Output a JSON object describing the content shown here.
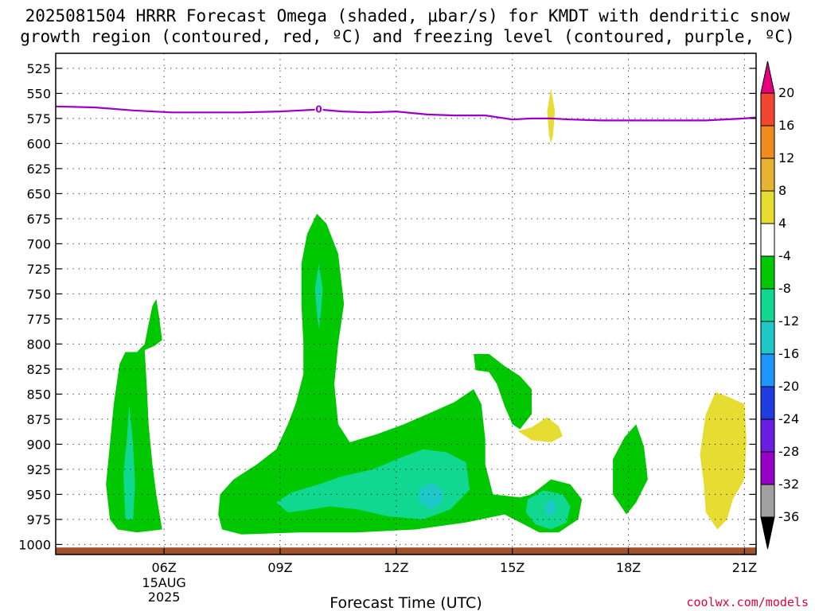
{
  "title_line1": "2025081504 HRRR Forecast Omega (shaded, μbar/s) for KMDT with dendritic snow",
  "title_line2": "growth region (contoured, red, ºC) and freezing level (contoured, purple, ºC)",
  "credit": "coolwx.com/models",
  "chart_data": {
    "type": "heatmap",
    "title": "2025081504 HRRR Forecast Omega (shaded, μbar/s) for KMDT with dendritic snow growth region (contoured, red, ºC) and freezing level (contoured, purple, ºC)",
    "xlabel": "Forecast Time (UTC)",
    "ylabel": "",
    "x_range_hours_utc": [
      3.2,
      21.3
    ],
    "ylim": [
      1010,
      510
    ],
    "y_ticks": [
      525,
      550,
      575,
      600,
      625,
      650,
      675,
      700,
      725,
      750,
      775,
      800,
      825,
      850,
      875,
      900,
      925,
      950,
      975,
      1000
    ],
    "x_ticks": [
      {
        "hour": 6,
        "label": "06Z"
      },
      {
        "hour": 9,
        "label": "09Z"
      },
      {
        "hour": 12,
        "label": "12Z"
      },
      {
        "hour": 15,
        "label": "15Z"
      },
      {
        "hour": 18,
        "label": "18Z"
      },
      {
        "hour": 21,
        "label": "21Z"
      }
    ],
    "date_label": [
      "15AUG",
      "2025"
    ],
    "grid": true,
    "colorbar": {
      "levels": [
        -36,
        -32,
        -28,
        -24,
        -20,
        -16,
        -12,
        -8,
        -4,
        4,
        8,
        12,
        16,
        20
      ],
      "colors": [
        "#000000",
        "#a0a0a0",
        "#9600c8",
        "#6a1ee0",
        "#1e3ce0",
        "#1e96ff",
        "#1ec8c8",
        "#10d890",
        "#00c800",
        "#ffffff",
        "#e6dc32",
        "#e6b432",
        "#f08c1e",
        "#f04632",
        "#e6007d"
      ]
    },
    "freezing_level": {
      "label": "0",
      "color": "#9a00c8",
      "hours": [
        3.2,
        4.2,
        5.2,
        6.2,
        7.2,
        8.0,
        9.0,
        10.0,
        10.6,
        11.3,
        12.0,
        12.8,
        13.5,
        14.3,
        15.0,
        15.5,
        16.0,
        16.5,
        17.3,
        18.2,
        19.0,
        20.0,
        21.0,
        21.3
      ],
      "pressure": [
        563,
        564,
        567,
        569,
        569,
        569,
        568,
        566,
        568,
        569,
        568,
        571,
        572,
        572,
        576,
        575,
        575,
        576,
        577,
        577,
        577,
        577,
        575,
        574
      ]
    },
    "omega_regions": [
      {
        "value": -6,
        "label": "-8 to -4",
        "points": [
          [
            4.6,
            975
          ],
          [
            4.5,
            940
          ],
          [
            4.6,
            900
          ],
          [
            4.7,
            860
          ],
          [
            4.85,
            820
          ],
          [
            5.0,
            808
          ],
          [
            5.3,
            808
          ],
          [
            5.5,
            800
          ],
          [
            5.6,
            780
          ],
          [
            5.7,
            762
          ],
          [
            5.8,
            755
          ],
          [
            5.88,
            775
          ],
          [
            5.95,
            796
          ],
          [
            5.75,
            802
          ],
          [
            5.5,
            806
          ],
          [
            5.55,
            840
          ],
          [
            5.6,
            880
          ],
          [
            5.7,
            920
          ],
          [
            5.8,
            950
          ],
          [
            5.95,
            985
          ],
          [
            5.3,
            988
          ],
          [
            4.8,
            985
          ]
        ]
      },
      {
        "value": -10,
        "label": "-12 to -8",
        "points": [
          [
            5.0,
            975
          ],
          [
            4.95,
            930
          ],
          [
            5.05,
            890
          ],
          [
            5.1,
            860
          ],
          [
            5.2,
            900
          ],
          [
            5.25,
            940
          ],
          [
            5.2,
            975
          ]
        ]
      },
      {
        "value": -6,
        "label": "-8 to -4",
        "points": [
          [
            7.5,
            985
          ],
          [
            7.4,
            970
          ],
          [
            7.45,
            950
          ],
          [
            7.8,
            935
          ],
          [
            8.4,
            920
          ],
          [
            8.9,
            905
          ],
          [
            9.2,
            880
          ],
          [
            9.4,
            860
          ],
          [
            9.6,
            830
          ],
          [
            9.6,
            800
          ],
          [
            9.55,
            760
          ],
          [
            9.55,
            720
          ],
          [
            9.7,
            690
          ],
          [
            9.95,
            670
          ],
          [
            10.2,
            680
          ],
          [
            10.5,
            710
          ],
          [
            10.65,
            760
          ],
          [
            10.5,
            800
          ],
          [
            10.4,
            840
          ],
          [
            10.5,
            880
          ],
          [
            10.8,
            898
          ],
          [
            11.5,
            890
          ],
          [
            12.2,
            880
          ],
          [
            12.8,
            870
          ],
          [
            13.5,
            858
          ],
          [
            14.0,
            845
          ],
          [
            14.2,
            860
          ],
          [
            14.3,
            895
          ],
          [
            14.3,
            920
          ],
          [
            14.5,
            950
          ],
          [
            15.2,
            953
          ],
          [
            15.5,
            950
          ],
          [
            16.0,
            935
          ],
          [
            16.5,
            940
          ],
          [
            16.8,
            955
          ],
          [
            16.7,
            975
          ],
          [
            16.2,
            988
          ],
          [
            15.7,
            988
          ],
          [
            14.8,
            970
          ],
          [
            13.8,
            978
          ],
          [
            12.5,
            985
          ],
          [
            11.0,
            988
          ],
          [
            9.5,
            988
          ],
          [
            8.0,
            990
          ]
        ]
      },
      {
        "value": -10,
        "label": "-12 to -8",
        "points": [
          [
            8.9,
            958
          ],
          [
            9.3,
            948
          ],
          [
            10.0,
            940
          ],
          [
            10.6,
            932
          ],
          [
            11.4,
            925
          ],
          [
            12.2,
            912
          ],
          [
            12.7,
            905
          ],
          [
            13.3,
            908
          ],
          [
            13.8,
            918
          ],
          [
            13.9,
            945
          ],
          [
            13.4,
            965
          ],
          [
            12.7,
            975
          ],
          [
            11.8,
            972
          ],
          [
            11.0,
            965
          ],
          [
            10.3,
            962
          ],
          [
            9.6,
            966
          ],
          [
            9.2,
            968
          ]
        ]
      },
      {
        "value": -14,
        "label": "-16 to -12",
        "points": [
          [
            12.6,
            945
          ],
          [
            12.9,
            938
          ],
          [
            13.2,
            945
          ],
          [
            13.2,
            958
          ],
          [
            12.9,
            965
          ],
          [
            12.6,
            958
          ]
        ]
      },
      {
        "value": -6,
        "label": "-8 to -4",
        "points": [
          [
            14.0,
            810
          ],
          [
            14.4,
            810
          ],
          [
            14.8,
            822
          ],
          [
            15.2,
            832
          ],
          [
            15.5,
            845
          ],
          [
            15.5,
            870
          ],
          [
            15.2,
            885
          ],
          [
            15.0,
            880
          ],
          [
            14.8,
            862
          ],
          [
            14.6,
            840
          ],
          [
            14.4,
            828
          ],
          [
            14.05,
            826
          ]
        ]
      },
      {
        "value": -10,
        "label": "-12 to -8",
        "points": [
          [
            15.4,
            955
          ],
          [
            15.8,
            946
          ],
          [
            16.3,
            950
          ],
          [
            16.5,
            962
          ],
          [
            16.4,
            978
          ],
          [
            16.0,
            985
          ],
          [
            15.6,
            980
          ],
          [
            15.35,
            968
          ]
        ]
      },
      {
        "value": -14,
        "label": "-16 to -12",
        "points": [
          [
            15.85,
            960
          ],
          [
            16.05,
            955
          ],
          [
            16.15,
            965
          ],
          [
            16.0,
            972
          ],
          [
            15.85,
            968
          ]
        ]
      },
      {
        "value": -6,
        "label": "-8 to -4",
        "points": [
          [
            17.6,
            915
          ],
          [
            17.9,
            893
          ],
          [
            18.2,
            880
          ],
          [
            18.4,
            902
          ],
          [
            18.5,
            935
          ],
          [
            18.2,
            958
          ],
          [
            17.95,
            970
          ],
          [
            17.6,
            950
          ]
        ]
      },
      {
        "value": 6,
        "label": "4 to 8",
        "points": [
          [
            20.0,
            870
          ],
          [
            20.25,
            848
          ],
          [
            20.6,
            853
          ],
          [
            21.0,
            860
          ],
          [
            21.05,
            895
          ],
          [
            21.0,
            935
          ],
          [
            20.7,
            955
          ],
          [
            20.55,
            975
          ],
          [
            20.3,
            985
          ],
          [
            20.0,
            968
          ],
          [
            19.95,
            940
          ],
          [
            19.85,
            910
          ]
        ]
      },
      {
        "value": 6,
        "label": "4 to 8",
        "points": [
          [
            15.15,
            887
          ],
          [
            15.5,
            883
          ],
          [
            15.9,
            873
          ],
          [
            16.2,
            882
          ],
          [
            16.3,
            892
          ],
          [
            16.0,
            898
          ],
          [
            15.5,
            896
          ]
        ]
      },
      {
        "value": 6,
        "label": "4 to 8",
        "points": [
          [
            16.0,
            545
          ],
          [
            16.1,
            568
          ],
          [
            16.05,
            592
          ],
          [
            16.0,
            600
          ],
          [
            15.95,
            592
          ],
          [
            15.9,
            568
          ]
        ]
      },
      {
        "value": -10,
        "label": "-12 to -8",
        "points": [
          [
            10.0,
            720
          ],
          [
            10.1,
            745
          ],
          [
            10.05,
            770
          ],
          [
            10.0,
            785
          ],
          [
            9.95,
            770
          ],
          [
            9.9,
            745
          ]
        ]
      }
    ],
    "terrain": {
      "label": "surface",
      "color": "#a0522d",
      "hours": [
        3.2,
        21.3
      ],
      "pressure_top": 1003
    }
  }
}
